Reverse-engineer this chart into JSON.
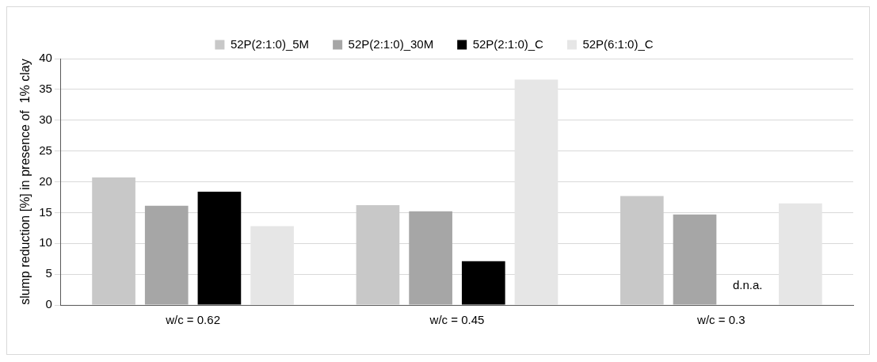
{
  "chart_data": {
    "type": "bar",
    "ylabel": "slump reduction [%] in presence of  1% clay",
    "categories": [
      "w/c = 0.62",
      "w/c = 0.45",
      "w/c = 0.3"
    ],
    "series": [
      {
        "name": "52P(2:1:0)_5M",
        "color": "#c8c8c8",
        "values": [
          20.7,
          16.2,
          17.7
        ]
      },
      {
        "name": "52P(2:1:0)_30M",
        "color": "#a6a6a6",
        "values": [
          16.1,
          15.2,
          14.7
        ]
      },
      {
        "name": "52P(2:1:0)_C",
        "color": "#000000",
        "values": [
          18.4,
          7.1,
          null
        ]
      },
      {
        "name": "52P(6:1:0)_C",
        "color": "#e6e6e6",
        "values": [
          12.8,
          36.6,
          16.5
        ]
      }
    ],
    "ylim": [
      0,
      40
    ],
    "yticks": [
      0,
      5,
      10,
      15,
      20,
      25,
      30,
      35,
      40
    ],
    "grid": "y",
    "legend": "top",
    "annotations": [
      "d.n.a."
    ]
  }
}
